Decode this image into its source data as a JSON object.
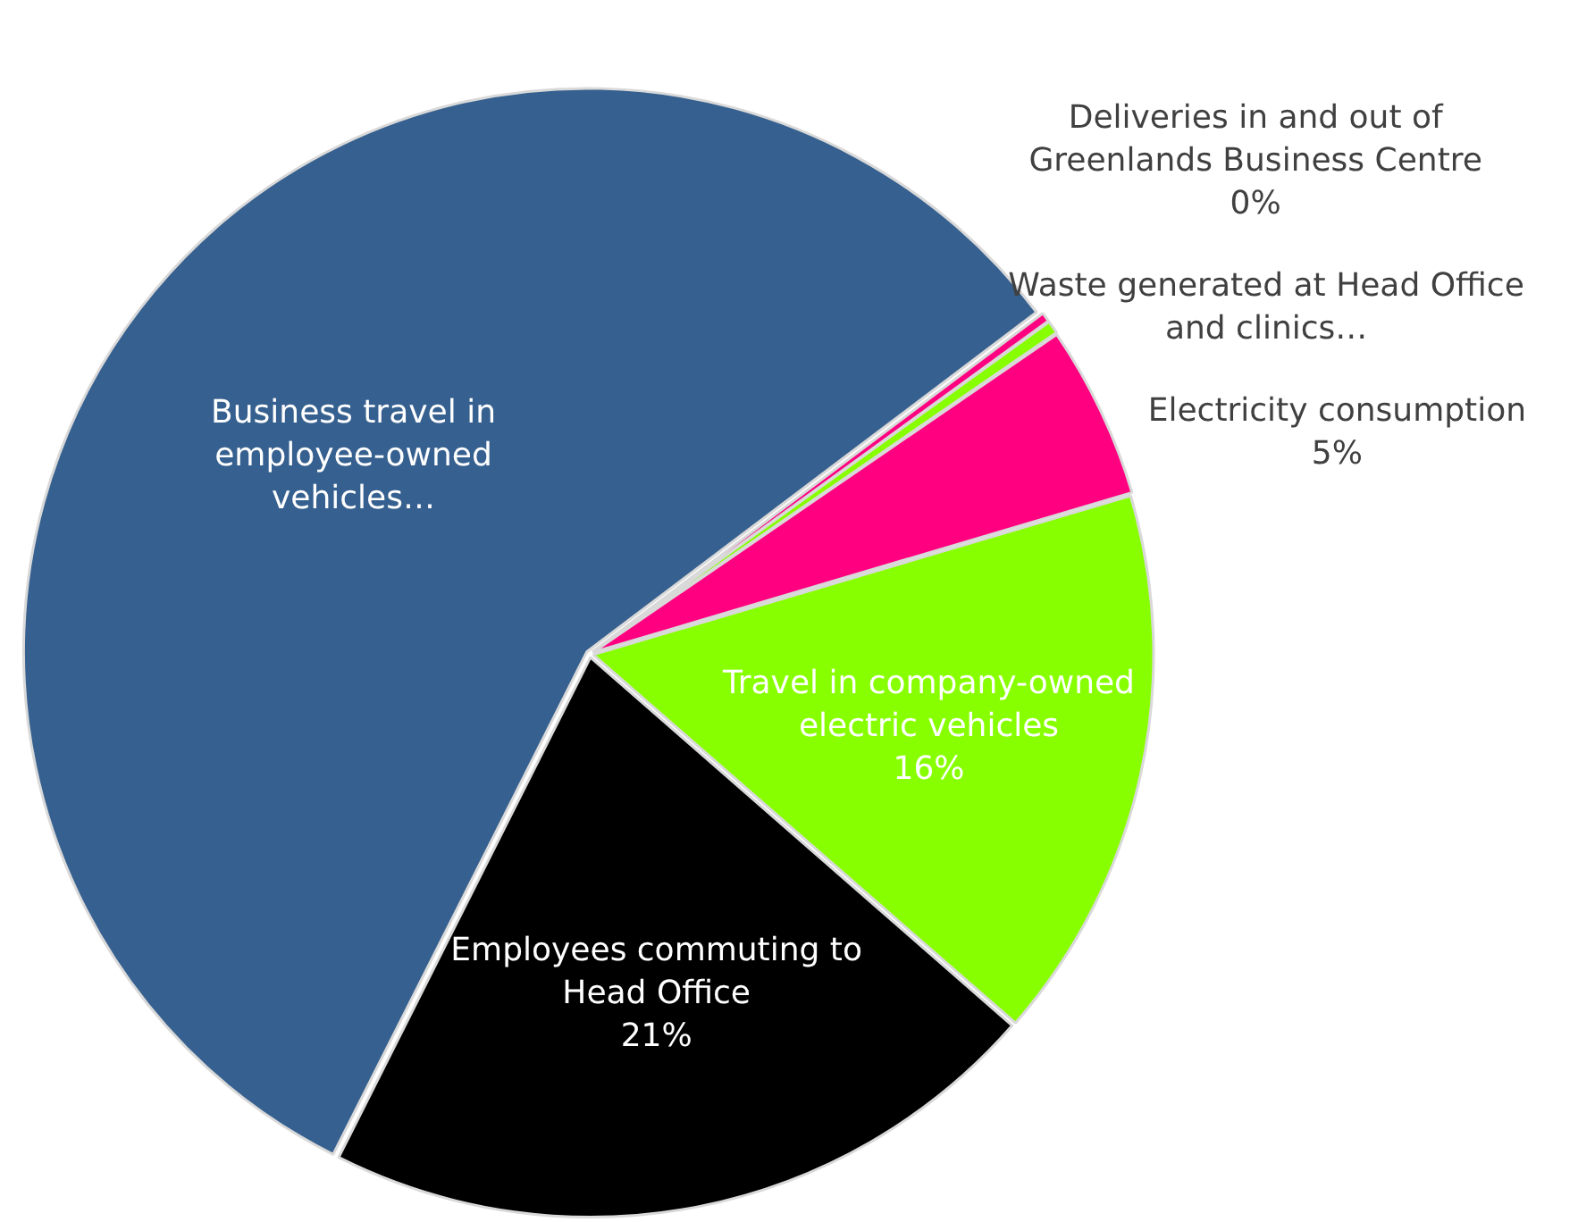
{
  "chart_data": {
    "type": "pie",
    "categories": [
      "Deliveries in and out of Greenlands Business Centre",
      "Waste generated at Head Office and clinics…",
      "Electricity consumption",
      "Travel in company-owned electric vehicles",
      "Employees commuting to Head Office",
      "Business travel in employee-owned vehicles…"
    ],
    "values": [
      0.3,
      0.4,
      5,
      16,
      21,
      57.3
    ],
    "colors": [
      "#ff0080",
      "#88ff00",
      "#ff0080",
      "#88ff00",
      "#000000",
      "#36608f"
    ],
    "value_labels": [
      "0%",
      null,
      "5%",
      "16%",
      "21%",
      null
    ],
    "legend": false
  }
}
